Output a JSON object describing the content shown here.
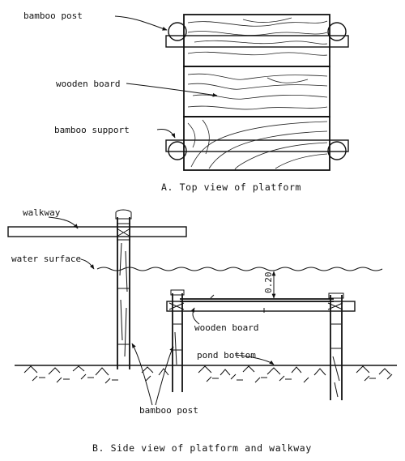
{
  "top_view": {
    "labels": {
      "bamboo_post": "bamboo post",
      "wooden_board": "wooden board",
      "bamboo_support": "bamboo support"
    },
    "caption": "A.  Top view of platform"
  },
  "side_view": {
    "labels": {
      "walkway": "walkway",
      "water_surface": "water surface",
      "depth": "0.20",
      "wooden_board": "wooden board",
      "pond_bottom": "pond bottom",
      "bamboo_post": "bamboo post"
    },
    "caption": "B.  Side view of platform and walkway"
  }
}
